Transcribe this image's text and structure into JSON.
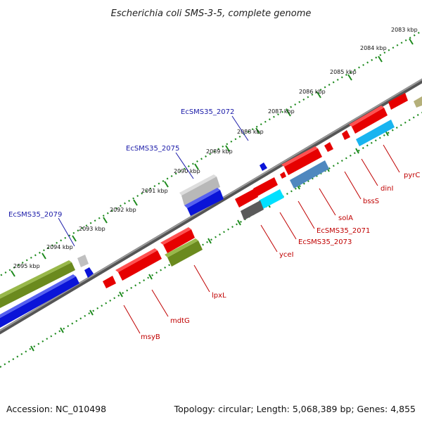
{
  "title": "Escherichia coli SMS-3-5, complete genome",
  "footer": {
    "accession": "Accession: NC_010498",
    "summary": "Topology: circular; Length: 5,068,389 bp; Genes: 4,855"
  },
  "colors": {
    "cds_red": "#e60000",
    "cds_blue": "#0a14d8",
    "cds_green": "#6b8a1e",
    "cds_cyan": "#00e0ff",
    "cds_sky": "#18b4f0",
    "cds_steel": "#4f88bf",
    "cds_gray": "#b8b8b8",
    "cds_dark": "#5a5a5a",
    "cds_olive": "#b5b07a",
    "backbone": "#777777",
    "ticks": "#1d8a1d",
    "blue_label": "#1a1aa8",
    "red_label": "#c00000"
  },
  "ticks": [
    {
      "label": "2083 kbp"
    },
    {
      "label": "2084 kbp"
    },
    {
      "label": "2085 kbp"
    },
    {
      "label": "2086 kbp"
    },
    {
      "label": "2087 kbp"
    },
    {
      "label": "2088 kbp"
    },
    {
      "label": "2089 kbp"
    },
    {
      "label": "2090 kbp"
    },
    {
      "label": "2091 kbp"
    },
    {
      "label": "2092 kbp"
    },
    {
      "label": "2093 kbp"
    },
    {
      "label": "2094 kbp"
    },
    {
      "label": "2095 kbp"
    }
  ],
  "forward_labels": [
    {
      "text": "EcSMS35_2072"
    },
    {
      "text": "EcSMS35_2075"
    },
    {
      "text": "EcSMS35_2079"
    }
  ],
  "reverse_labels": [
    {
      "text": "pyrC"
    },
    {
      "text": "dinI"
    },
    {
      "text": "bssS"
    },
    {
      "text": "solA"
    },
    {
      "text": "EcSMS35_2071"
    },
    {
      "text": "EcSMS35_2073"
    },
    {
      "text": "yceI"
    },
    {
      "text": "lpxL"
    },
    {
      "text": "mdtG"
    },
    {
      "text": "msyB"
    }
  ]
}
